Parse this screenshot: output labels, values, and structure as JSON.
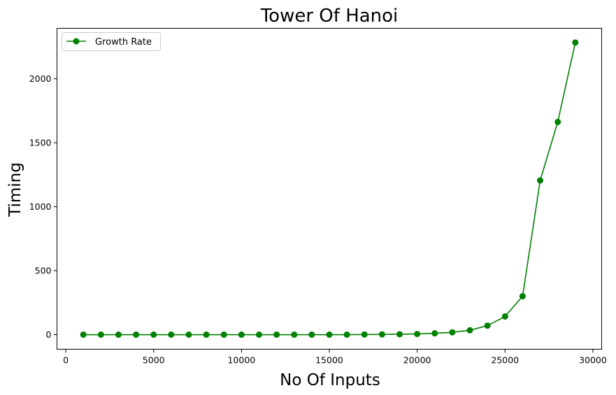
{
  "chart_data": {
    "type": "line",
    "title": "Tower Of Hanoi",
    "xlabel": "No Of Inputs",
    "ylabel": "Timing",
    "xlim": [
      -500,
      30500
    ],
    "ylim": [
      -114,
      2394
    ],
    "xticks": [
      0,
      5000,
      10000,
      15000,
      20000,
      25000,
      30000
    ],
    "yticks": [
      0,
      500,
      1000,
      1500,
      2000
    ],
    "grid": false,
    "legend_position": "top-left",
    "series": [
      {
        "name": "Growth Rate",
        "color": "#008000",
        "marker": "circle",
        "x": [
          1000,
          2000,
          3000,
          4000,
          5000,
          6000,
          7000,
          8000,
          9000,
          10000,
          11000,
          12000,
          13000,
          14000,
          15000,
          16000,
          17000,
          18000,
          19000,
          20000,
          21000,
          22000,
          23000,
          24000,
          25000,
          26000,
          27000,
          28000,
          29000
        ],
        "y": [
          0,
          0,
          0,
          0,
          0,
          0,
          0,
          0,
          0,
          0,
          0,
          0,
          0,
          0,
          0,
          0,
          1,
          2,
          3,
          5,
          10,
          18,
          34,
          70,
          142,
          300,
          1205,
          1662,
          2283
        ]
      }
    ]
  }
}
